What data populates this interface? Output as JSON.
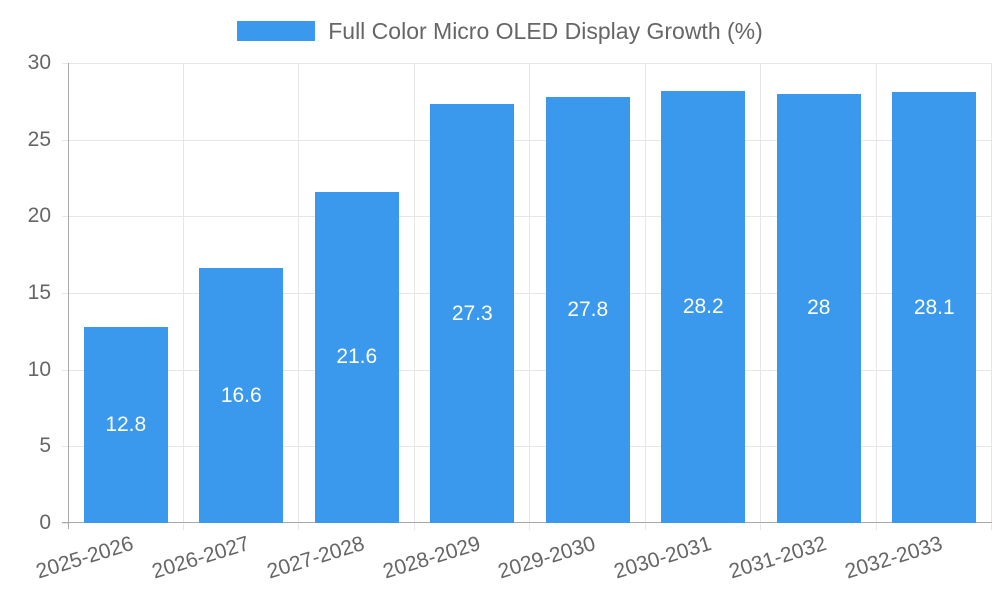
{
  "chart_data": {
    "type": "bar",
    "title": "Full Color Micro OLED Display Growth (%)",
    "xlabel": "",
    "ylabel": "",
    "categories": [
      "2025-2026",
      "2026-2027",
      "2027-2028",
      "2028-2029",
      "2029-2030",
      "2030-2031",
      "2031-2032",
      "2032-2033"
    ],
    "values": [
      12.8,
      16.6,
      21.6,
      27.3,
      27.8,
      28.2,
      28,
      28.1
    ],
    "value_labels": [
      "12.8",
      "16.6",
      "21.6",
      "27.3",
      "27.8",
      "28.2",
      "28",
      "28.1"
    ],
    "ylim": [
      0,
      30
    ],
    "yticks": [
      0,
      5,
      10,
      15,
      20,
      25,
      30
    ],
    "grid": true,
    "legend_position": "top",
    "series_name": "Full Color Micro OLED Display Growth (%)"
  },
  "colors": {
    "bar": "#3a99ec",
    "grid": "#e6e6e6",
    "axis": "#a8a8a8",
    "tick_label": "#666666",
    "legend_text": "#666666",
    "bar_label": "#ffffff",
    "background": "#ffffff"
  }
}
